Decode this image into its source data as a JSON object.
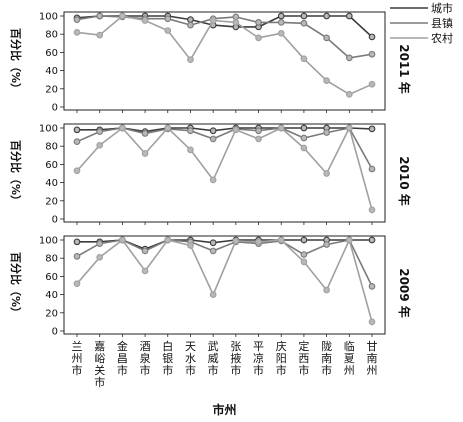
{
  "chart_data": {
    "type": "line",
    "xlabel": "市州",
    "ylabel": "百分比（%）",
    "ylim": [
      0,
      100
    ],
    "yticks": [
      0,
      20,
      40,
      60,
      80,
      100
    ],
    "categories": [
      "兰州市",
      "嘉峪关市",
      "金昌市",
      "酒泉市",
      "白银市",
      "天水市",
      "武威市",
      "张掖市",
      "平凉市",
      "庆阳市",
      "定西市",
      "陇南市",
      "临夏州",
      "甘南州"
    ],
    "legend": {
      "position": "top-right",
      "entries": [
        {
          "name": "城市",
          "color": "#3c3c3c"
        },
        {
          "name": "县镇",
          "color": "#7a7a7a"
        },
        {
          "name": "农村",
          "color": "#a0a0a0"
        }
      ]
    },
    "panels": [
      {
        "year": "2011 年",
        "series": [
          {
            "name": "城市",
            "values": [
              98,
              100,
              100,
              100,
              100,
              96,
              90,
              88,
              88,
              100,
              100,
              100,
              100,
              77
            ]
          },
          {
            "name": "县镇",
            "values": [
              96,
              100,
              99,
              97,
              97,
              90,
              97,
              99,
              93,
              93,
              92,
              76,
              54,
              58
            ]
          },
          {
            "name": "农村",
            "values": [
              82,
              79,
              100,
              95,
              84,
              52,
              95,
              93,
              76,
              81,
              53,
              29,
              14,
              25
            ]
          }
        ]
      },
      {
        "year": "2010 年",
        "series": [
          {
            "name": "城市",
            "values": [
              98,
              98,
              100,
              96,
              100,
              100,
              97,
              100,
              100,
              100,
              100,
              100,
              100,
              99
            ]
          },
          {
            "name": "县镇",
            "values": [
              85,
              96,
              100,
              94,
              99,
              97,
              88,
              99,
              97,
              100,
              89,
              95,
              100,
              55
            ]
          },
          {
            "name": "农村",
            "values": [
              53,
              81,
              100,
              72,
              100,
              76,
              43,
              98,
              88,
              100,
              78,
              50,
              100,
              10
            ]
          }
        ]
      },
      {
        "year": "2009 年",
        "series": [
          {
            "name": "城市",
            "values": [
              98,
              98,
              100,
              90,
              100,
              100,
              97,
              100,
              100,
              100,
              100,
              100,
              100,
              100
            ]
          },
          {
            "name": "县镇",
            "values": [
              82,
              96,
              100,
              88,
              100,
              98,
              88,
              98,
              96,
              99,
              84,
              95,
              100,
              49
            ]
          },
          {
            "name": "农村",
            "values": [
              52,
              81,
              100,
              66,
              100,
              94,
              40,
              99,
              98,
              100,
              76,
              45,
              100,
              10
            ]
          }
        ]
      }
    ]
  }
}
